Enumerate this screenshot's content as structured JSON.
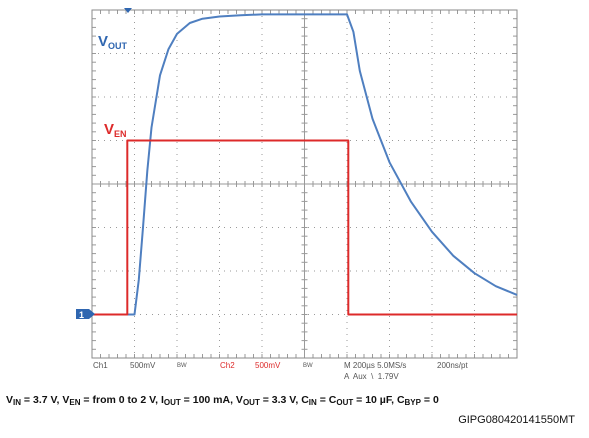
{
  "colors": {
    "vout": "#4f7fc0",
    "ven": "#dd2a2a",
    "grid": "#9a9a9a",
    "frame": "#8a8a8a",
    "bg": "#ffffff",
    "marker": "#2f66b0",
    "readout_gray": "#555555"
  },
  "trace_labels": {
    "vout": {
      "main": "V",
      "sub": "OUT"
    },
    "ven": {
      "main": "V",
      "sub": "EN"
    }
  },
  "ground_marker": "1",
  "readout": {
    "ch1": "Ch1",
    "ch1_scale": "500mV",
    "ch1_bw": "BW",
    "ch2": "Ch2",
    "ch2_scale": "500mV",
    "ch2_bw": "BW",
    "timebase": "M 200µs 5.0MS/s",
    "resolution": "200ns/pt",
    "trigger": "A  Aux  \\  1.79V"
  },
  "caption": {
    "vin": {
      "main": "V",
      "sub": "IN",
      "text": " = 3.7 V, "
    },
    "ven": {
      "main": "V",
      "sub": "EN",
      "text": " = from 0 to 2 V, "
    },
    "iout": {
      "main": "I",
      "sub": "OUT",
      "text": " = 100 mA, "
    },
    "vout": {
      "main": "V",
      "sub": "OUT",
      "text": " = 3.3 V, "
    },
    "cin": {
      "main": "C",
      "sub": "IN",
      "text": " = "
    },
    "cout": {
      "main": "C",
      "sub": "OUT",
      "text": " = 10 µF, "
    },
    "cbyp": {
      "main": "C",
      "sub": "BYP",
      "text": " = 0"
    }
  },
  "figure_id": "GIPG080420141550MT",
  "chart_data": {
    "type": "line",
    "x_divisions": 10,
    "y_divisions": 8,
    "x_range_div": [
      0,
      10
    ],
    "y_range_div": [
      -4,
      4
    ],
    "grid": true,
    "series": [
      {
        "name": "VOUT",
        "x": [
          0,
          1.0,
          1.1,
          1.2,
          1.3,
          1.4,
          1.6,
          1.8,
          2.0,
          2.3,
          2.6,
          3.0,
          3.5,
          4.0,
          5.0,
          6.0,
          6.15,
          6.3,
          6.6,
          7.0,
          7.5,
          8.0,
          8.5,
          9.0,
          9.5,
          10
        ],
        "y": [
          -3.0,
          -3.0,
          -2.2,
          -1.0,
          0.3,
          1.3,
          2.5,
          3.1,
          3.45,
          3.7,
          3.8,
          3.85,
          3.88,
          3.9,
          3.9,
          3.9,
          3.5,
          2.6,
          1.5,
          0.5,
          -0.4,
          -1.1,
          -1.65,
          -2.05,
          -2.35,
          -2.55
        ]
      },
      {
        "name": "VEN",
        "x": [
          0,
          0.83,
          0.83,
          6.03,
          6.03,
          10
        ],
        "y": [
          -3.0,
          -3.0,
          1.0,
          1.0,
          -3.0,
          -3.0
        ]
      }
    ]
  }
}
